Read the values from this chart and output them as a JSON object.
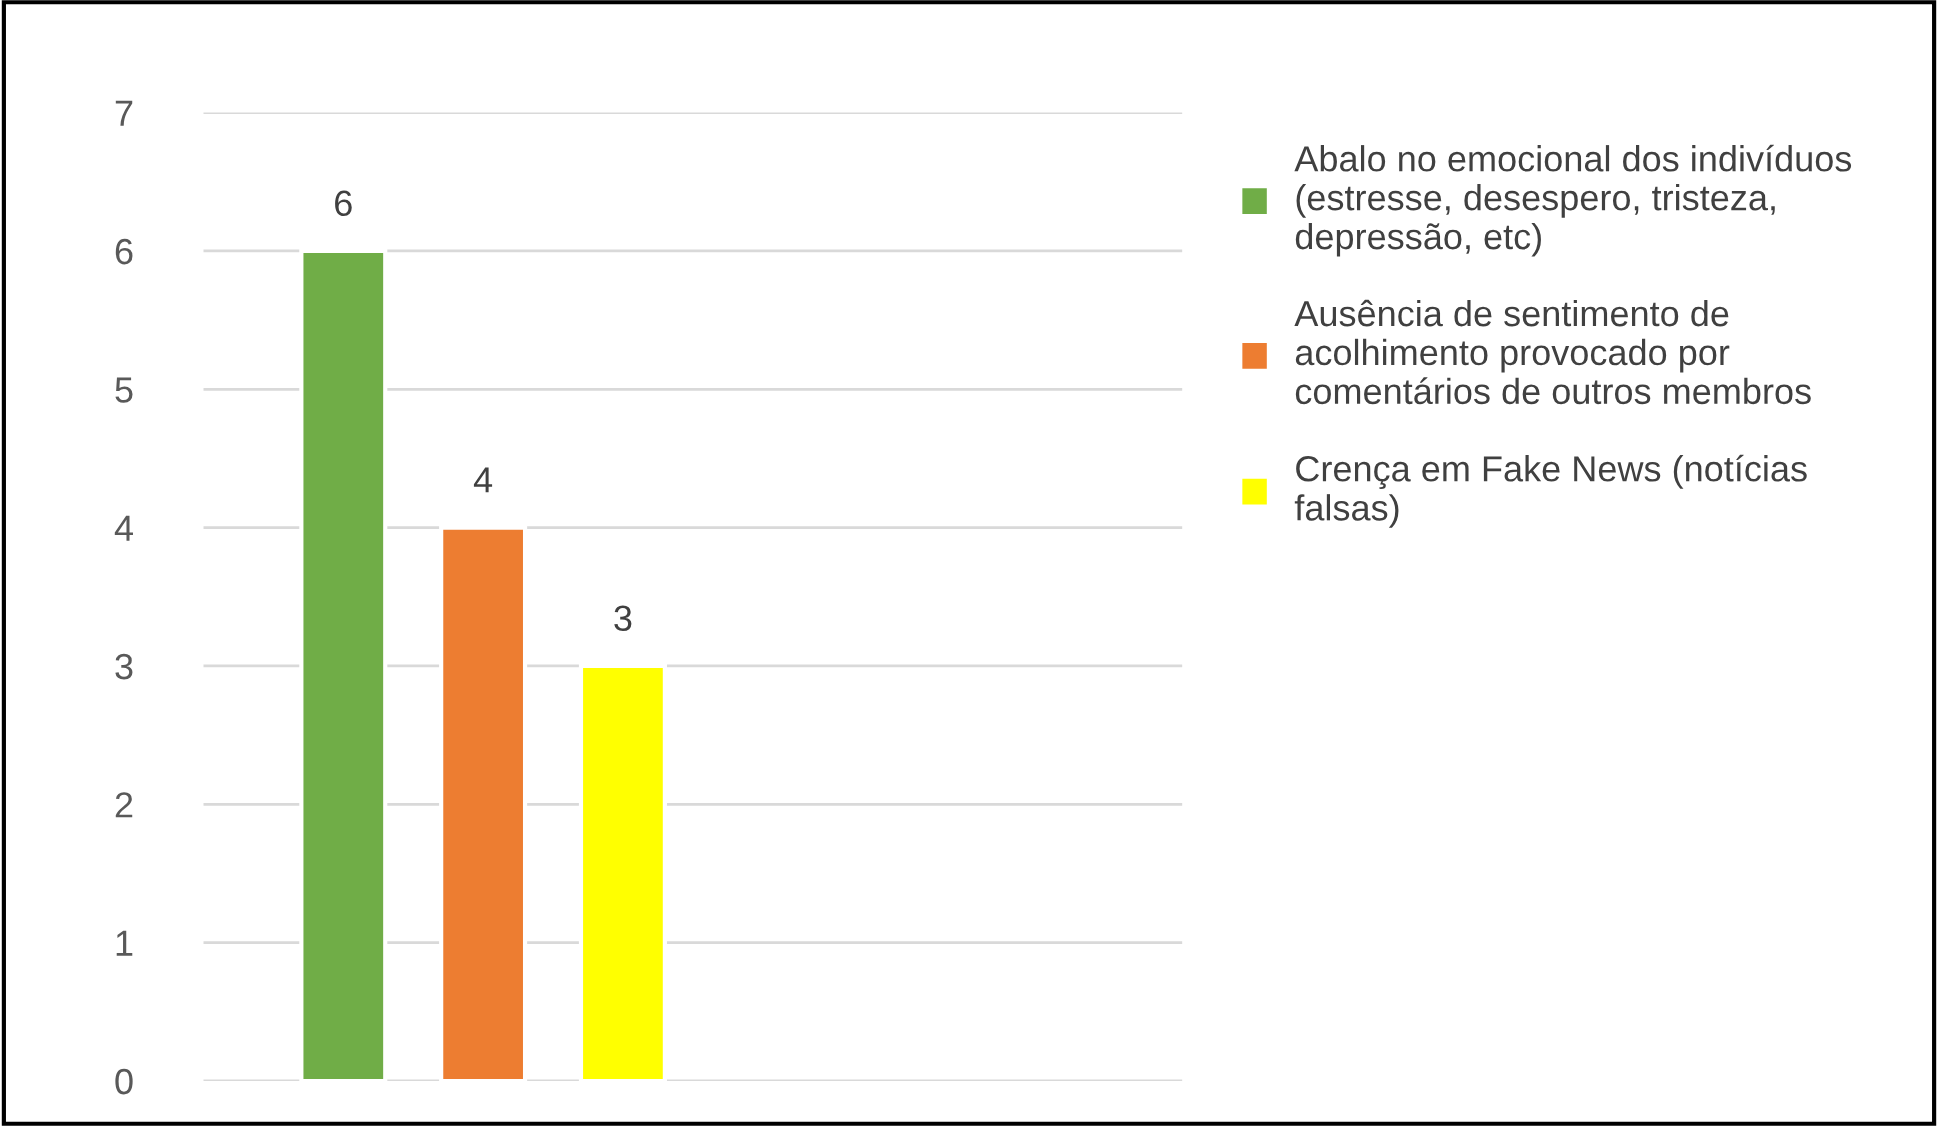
{
  "chart_data": {
    "type": "bar",
    "categories": [
      null
    ],
    "series": [
      {
        "name": "Abalo no emocional dos indivíduos (estresse, desespero, tristeza, depressão, etc)",
        "color": "#70ad47",
        "values": [
          6
        ]
      },
      {
        "name": "Ausência de sentimento de acolhimento provocado por comentários de outros membros",
        "color": "#ed7d31",
        "values": [
          4
        ]
      },
      {
        "name": "Crença em Fake News (notícias falsas)",
        "color": "#ffff00",
        "values": [
          3
        ]
      }
    ],
    "ylim": [
      0,
      7
    ],
    "yticks": [
      0,
      1,
      2,
      3,
      4,
      5,
      6,
      7
    ],
    "grid": "y",
    "legend": "right",
    "data_labels": true
  }
}
